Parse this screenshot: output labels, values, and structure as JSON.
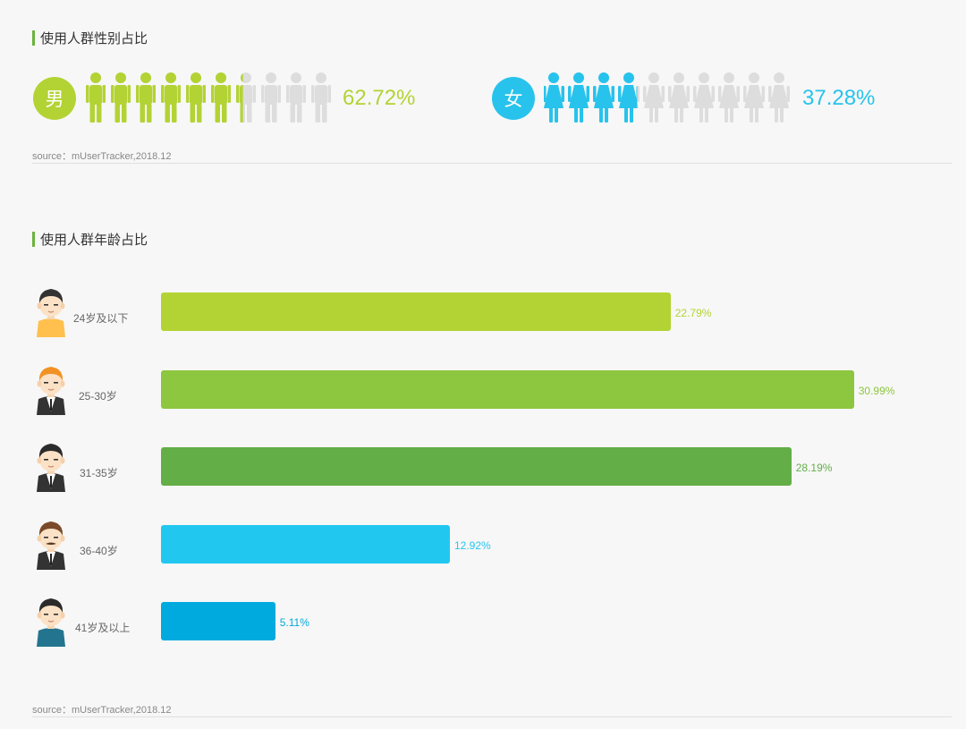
{
  "sections": {
    "gender": {
      "title": "使用人群性别占比",
      "source": "source：mUserTracker,2018.12",
      "male": {
        "symbol": "男",
        "percent_label": "62.72%",
        "value": 62.72,
        "color": "#b3d334"
      },
      "female": {
        "symbol": "女",
        "percent_label": "37.28%",
        "value": 37.28,
        "color": "#27c3ec"
      },
      "inactive_color": "#dddddd",
      "accent": "#6cb33e"
    },
    "age": {
      "title": "使用人群年龄占比",
      "source": "source：mUserTracker,2018.12"
    }
  },
  "chart_data": [
    {
      "type": "pictograph",
      "categories": [
        "男",
        "女"
      ],
      "values": [
        62.72,
        37.28
      ],
      "title": "使用人群性别占比"
    },
    {
      "type": "bar",
      "orientation": "horizontal",
      "title": "使用人群年龄占比",
      "categories": [
        "24岁及以下",
        "25-30岁",
        "31-35岁",
        "36-40岁",
        "41岁及以上"
      ],
      "values": [
        22.79,
        30.99,
        28.19,
        12.92,
        5.11
      ],
      "value_labels": [
        "22.79%",
        "30.99%",
        "28.19%",
        "12.92%",
        "5.11%"
      ],
      "colors": [
        "#b3d334",
        "#8dc63f",
        "#64ae47",
        "#22c7f0",
        "#00aade"
      ],
      "xlim": [
        0,
        37.6
      ],
      "grid": false
    }
  ]
}
